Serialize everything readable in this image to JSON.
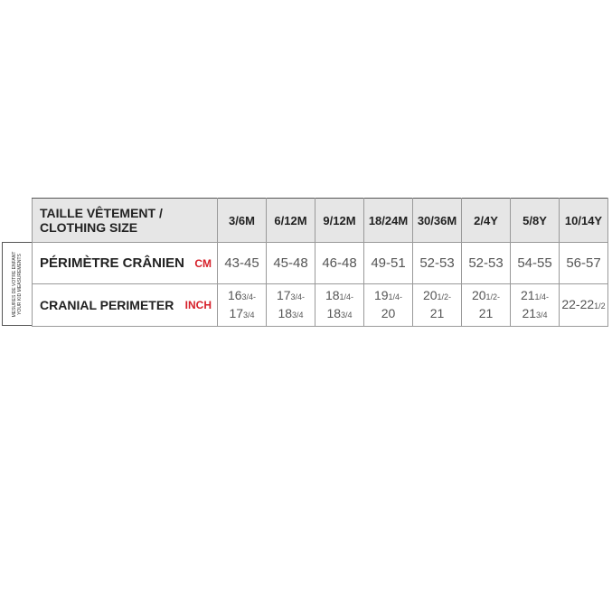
{
  "side_label": [
    "MESURES DE VOTRE ENFANT",
    "YOUR KID MEASUREMENTS"
  ],
  "header": {
    "label_line1": "TAILLE VÊTEMENT /",
    "label_line2": "CLOTHING SIZE",
    "sizes": [
      "3/6M",
      "6/12M",
      "9/12M",
      "18/24M",
      "30/36M",
      "2/4Y",
      "5/8Y",
      "10/14Y"
    ]
  },
  "cm_row": {
    "label": "PÉRIMÈTRE CRÂNIEN",
    "unit": "CM",
    "values": [
      "43-45",
      "45-48",
      "46-48",
      "49-51",
      "52-53",
      "52-53",
      "54-55",
      "56-57"
    ]
  },
  "inch_row": {
    "label": "CRANIAL PERIMETER",
    "unit": "INCH",
    "values": [
      {
        "a": "16",
        "af": "3/4-",
        "b": "17",
        "bf": "3/4"
      },
      {
        "a": "17",
        "af": "3/4-",
        "b": "18",
        "bf": "3/4"
      },
      {
        "a": "18",
        "af": "1/4-",
        "b": "18",
        "bf": "3/4"
      },
      {
        "a": "19",
        "af": "1/4-",
        "b": "20",
        "bf": ""
      },
      {
        "a": "20",
        "af": "1/2-",
        "b": "21",
        "bf": ""
      },
      {
        "a": "20",
        "af": "1/2-",
        "b": "21",
        "bf": ""
      },
      {
        "a": "21",
        "af": "1/4-",
        "b": "21",
        "bf": "3/4"
      },
      {
        "a": "22-22",
        "af": "1/2",
        "b": "",
        "bf": ""
      }
    ]
  },
  "colors": {
    "unit": "#d6202a",
    "header_bg": "#e6e6e6"
  }
}
